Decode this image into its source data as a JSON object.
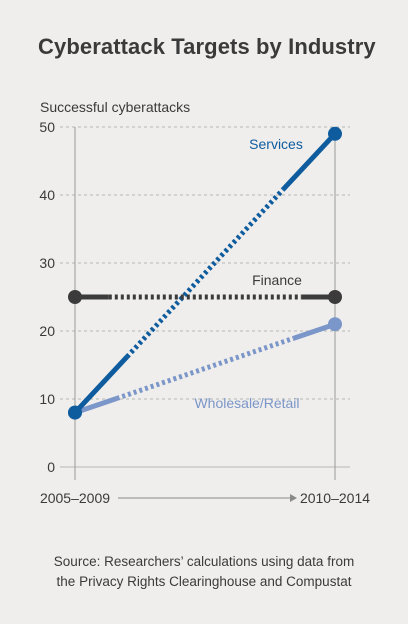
{
  "chart_data": {
    "type": "line",
    "title": "Cyberattack Targets by Industry",
    "ylabel": "Successful cyberattacks",
    "x": [
      "2005–2009",
      "2010–2014"
    ],
    "ylim": [
      0,
      50
    ],
    "yticks": [
      0,
      10,
      20,
      30,
      40,
      50
    ],
    "grid": true,
    "series": [
      {
        "name": "Services",
        "values": [
          8,
          49
        ],
        "color": "#0e5c9e"
      },
      {
        "name": "Finance",
        "values": [
          25,
          25
        ],
        "color": "#3b3b3b"
      },
      {
        "name": "Wholesale/Retail",
        "values": [
          8,
          21
        ],
        "color": "#7b96c8"
      }
    ]
  },
  "source": {
    "line1": "Source: Researchers’ calculations using data from",
    "line2": "the Privacy Rights Clearinghouse and Compustat"
  }
}
